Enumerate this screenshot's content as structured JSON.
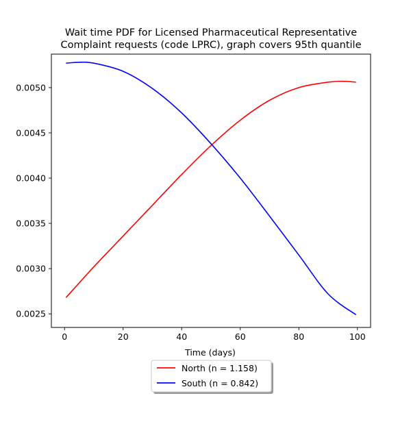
{
  "chart_data": {
    "type": "line",
    "title_line1": "Wait time PDF for Licensed Pharmaceutical Representative",
    "title_line2": "Complaint  requests (code LPRC), graph covers 95th quantile",
    "xlabel": "Time (days)",
    "ylabel": "",
    "xlim": [
      -4.5,
      104.5
    ],
    "ylim": [
      0.00235,
      0.00537
    ],
    "xticks": [
      0,
      20,
      40,
      60,
      80,
      100
    ],
    "xtick_labels": [
      "0",
      "20",
      "40",
      "60",
      "80",
      "100"
    ],
    "yticks": [
      0.0025,
      0.003,
      0.0035,
      0.004,
      0.0045,
      0.005
    ],
    "ytick_labels": [
      "0.0025",
      "0.0030",
      "0.0035",
      "0.0040",
      "0.0045",
      "0.0050"
    ],
    "grid": false,
    "legend_position": "below plot, centered",
    "series": [
      {
        "name": "North (n = 1.158)",
        "color": "#ff0000",
        "x": [
          0.5,
          10,
          20,
          30,
          40,
          50,
          60,
          70,
          80,
          90,
          95,
          99.5
        ],
        "y": [
          0.00268,
          0.00302,
          0.00336,
          0.0037,
          0.00404,
          0.00436,
          0.00464,
          0.00486,
          0.005,
          0.00506,
          0.00507,
          0.00506
        ]
      },
      {
        "name": "South (n = 0.842)",
        "color": "#0000ff",
        "x": [
          0.5,
          5,
          10,
          20,
          30,
          40,
          50,
          60,
          70,
          80,
          90,
          99.5
        ],
        "y": [
          0.00527,
          0.00528,
          0.00527,
          0.00518,
          0.00499,
          0.00472,
          0.00438,
          0.004,
          0.00358,
          0.00315,
          0.00272,
          0.00249
        ]
      }
    ]
  }
}
